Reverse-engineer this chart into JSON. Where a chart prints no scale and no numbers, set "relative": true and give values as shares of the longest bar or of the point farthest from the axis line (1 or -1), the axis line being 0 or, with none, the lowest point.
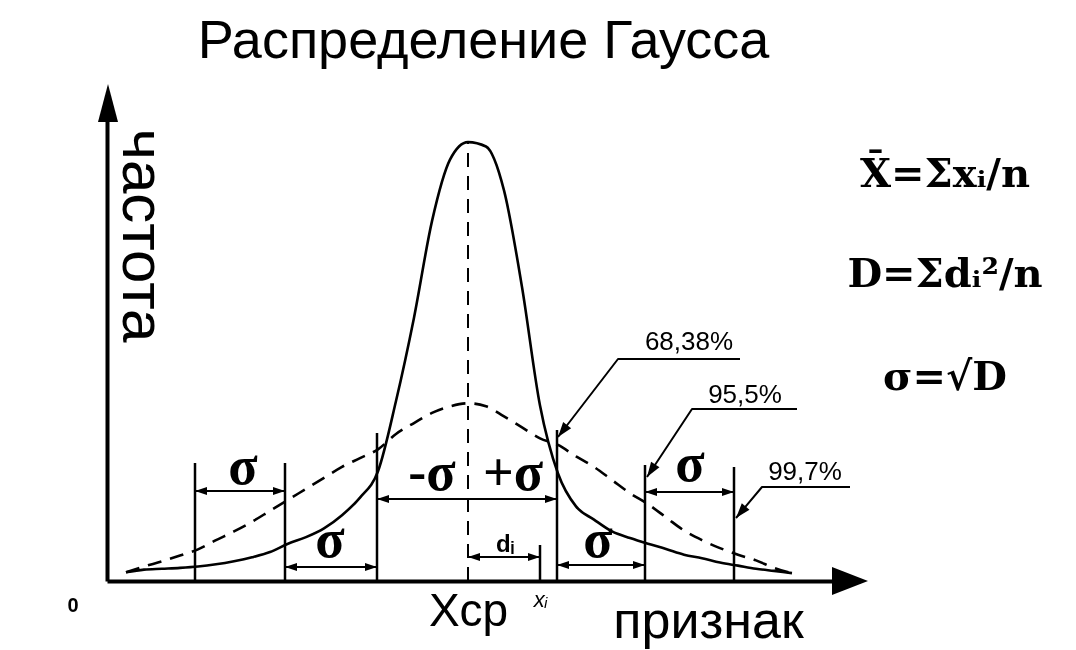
{
  "chart_data": {
    "type": "line",
    "title": "Распределение Гаусса",
    "xlabel": "признак",
    "ylabel": "частота",
    "relative": true,
    "categories": [
      null,
      null,
      null,
      null,
      null,
      null,
      null,
      null,
      null,
      null,
      null,
      null,
      null,
      null,
      null,
      null,
      null,
      null,
      null,
      "Xср",
      null,
      null,
      null,
      "xᵢ",
      null,
      null,
      null,
      null,
      null,
      null,
      null,
      null,
      null,
      null,
      null,
      null,
      null,
      null
    ],
    "series": [
      {
        "color": "#000000",
        "line_style": "solid",
        "values": [
          0.02,
          0.026,
          0.028,
          0.03,
          0.033,
          0.038,
          0.045,
          0.054,
          0.066,
          0.085,
          0.1,
          0.12,
          0.15,
          0.19,
          0.25,
          0.41,
          0.6,
          0.82,
          0.96,
          1,
          0.99,
          0.89,
          0.67,
          0.4,
          0.245,
          0.17,
          0.14,
          0.113,
          0.098,
          0.085,
          0.073,
          0.06,
          0.052,
          0.042,
          0.035,
          0.028,
          0.023,
          0.018
        ]
      },
      {
        "color": "#000000",
        "line_style": "dashed",
        "values": [
          0.02,
          0.033,
          0.045,
          0.058,
          0.072,
          0.093,
          0.113,
          0.135,
          0.16,
          0.185,
          0.21,
          0.235,
          0.26,
          0.28,
          0.3,
          0.335,
          0.36,
          0.383,
          0.398,
          0.405,
          0.398,
          0.375,
          0.35,
          0.325,
          0.31,
          0.284,
          0.26,
          0.23,
          0.2,
          0.175,
          0.145,
          0.115,
          0.093,
          0.075,
          0.06,
          0.047,
          0.03,
          0.018
        ]
      }
    ],
    "ref_lines": [
      {
        "axis": "x",
        "value": "Xср",
        "line_style": "dashed",
        "color": "#000000"
      }
    ],
    "annotations": [
      "0",
      "σ",
      "σ",
      "-σ",
      "+σ",
      "σ",
      "σ",
      "dᵢ",
      "68,38%",
      "95,5%",
      "99,7%",
      "X̄=Σxᵢ/n",
      "D=Σdᵢ²/n",
      "σ=√D"
    ]
  }
}
